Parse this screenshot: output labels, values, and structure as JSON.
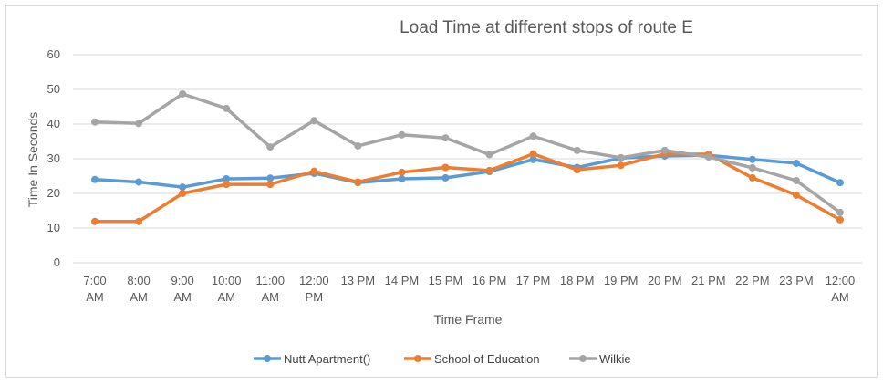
{
  "chart_data": {
    "type": "line",
    "title": "Load Time at different stops of route E",
    "xlabel": "Time Frame",
    "ylabel": "Time In Seconds",
    "ylim": [
      0,
      60
    ],
    "yticks": [
      0,
      10,
      20,
      30,
      40,
      50,
      60
    ],
    "grid": true,
    "legend_position": "bottom",
    "categories": [
      [
        "7:00",
        "AM"
      ],
      [
        "8:00",
        "AM"
      ],
      [
        "9:00",
        "AM"
      ],
      [
        "10:00",
        "AM"
      ],
      [
        "11:00",
        "AM"
      ],
      [
        "12:00",
        "PM"
      ],
      [
        "13 PM"
      ],
      [
        "14 PM"
      ],
      [
        "15 PM"
      ],
      [
        "16 PM"
      ],
      [
        "17 PM"
      ],
      [
        "18 PM"
      ],
      [
        "19 PM"
      ],
      [
        "20 PM"
      ],
      [
        "21 PM"
      ],
      [
        "22 PM"
      ],
      [
        "23 PM"
      ],
      [
        "12:00",
        "AM"
      ]
    ],
    "series": [
      {
        "name": "Nutt Apartment()",
        "color": "#5b9bd5",
        "values": [
          24,
          23.3,
          21.8,
          24.2,
          24.4,
          25.8,
          23.1,
          24.2,
          24.5,
          26.3,
          29.8,
          27.5,
          30.2,
          30.8,
          31,
          29.8,
          28.7,
          23.1
        ]
      },
      {
        "name": "School of Education",
        "color": "#ed7d31",
        "values": [
          11.9,
          11.9,
          20,
          22.6,
          22.6,
          26.4,
          23.3,
          26.1,
          27.5,
          26.6,
          31.4,
          26.8,
          28.1,
          31.4,
          31.3,
          24.5,
          19.5,
          12.4
        ]
      },
      {
        "name": "Wilkie",
        "color": "#a5a5a5",
        "values": [
          40.6,
          40.2,
          48.7,
          44.5,
          33.4,
          41,
          33.7,
          36.9,
          36,
          31.2,
          36.5,
          32.4,
          30.3,
          32.4,
          30.5,
          27.4,
          23.7,
          14.5
        ]
      }
    ]
  }
}
